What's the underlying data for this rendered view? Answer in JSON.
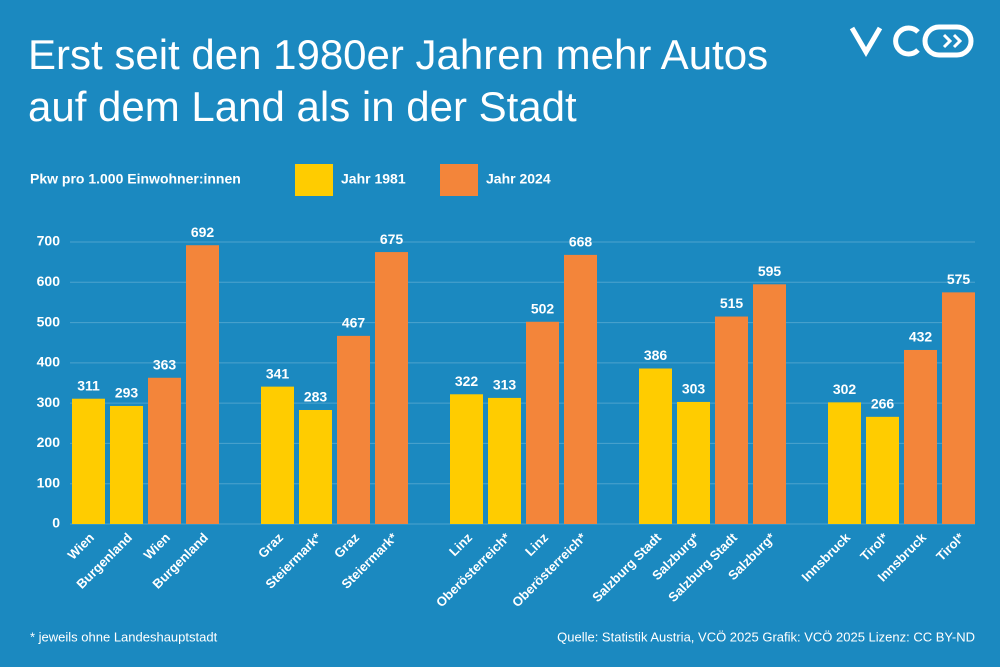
{
  "chart_data": {
    "type": "bar",
    "title": [
      "Erst seit den 1980er Jahren mehr Autos",
      "auf dem Land als in der Stadt"
    ],
    "ylabel": "Pkw pro 1.000 Einwohner:innen",
    "categories": [
      "Wien",
      "Burgenland",
      "Wien",
      "Burgenland",
      "Graz",
      "Steiermark*",
      "Graz",
      "Steiermark*",
      "Linz",
      "Oberösterreich*",
      "Linz",
      "Oberösterreich*",
      "Salzburg Stadt",
      "Salzburg*",
      "Salzburg Stadt",
      "Salzburg*",
      "Innsbruck",
      "Tirol*",
      "Innsbruck",
      "Tirol*"
    ],
    "series": [
      {
        "name": "Jahr 1981",
        "color": "#ffcc00",
        "values": [
          311,
          293,
          null,
          null,
          341,
          283,
          null,
          null,
          322,
          313,
          null,
          null,
          386,
          303,
          null,
          null,
          302,
          266,
          null,
          null
        ]
      },
      {
        "name": "Jahr 2024",
        "color": "#f3853a",
        "values": [
          null,
          null,
          363,
          692,
          null,
          null,
          467,
          675,
          null,
          null,
          502,
          668,
          null,
          null,
          515,
          595,
          null,
          null,
          432,
          575
        ]
      }
    ],
    "ylim": [
      0,
      700
    ],
    "yticks": [
      0,
      100,
      200,
      300,
      400,
      500,
      600,
      700
    ],
    "grid": true,
    "footnote": "* jeweils ohne Landeshauptstadt",
    "source": "Quelle: Statistik Austria, VCÖ 2025 Grafik: VCÖ 2025 Lizenz: CC BY-ND"
  }
}
